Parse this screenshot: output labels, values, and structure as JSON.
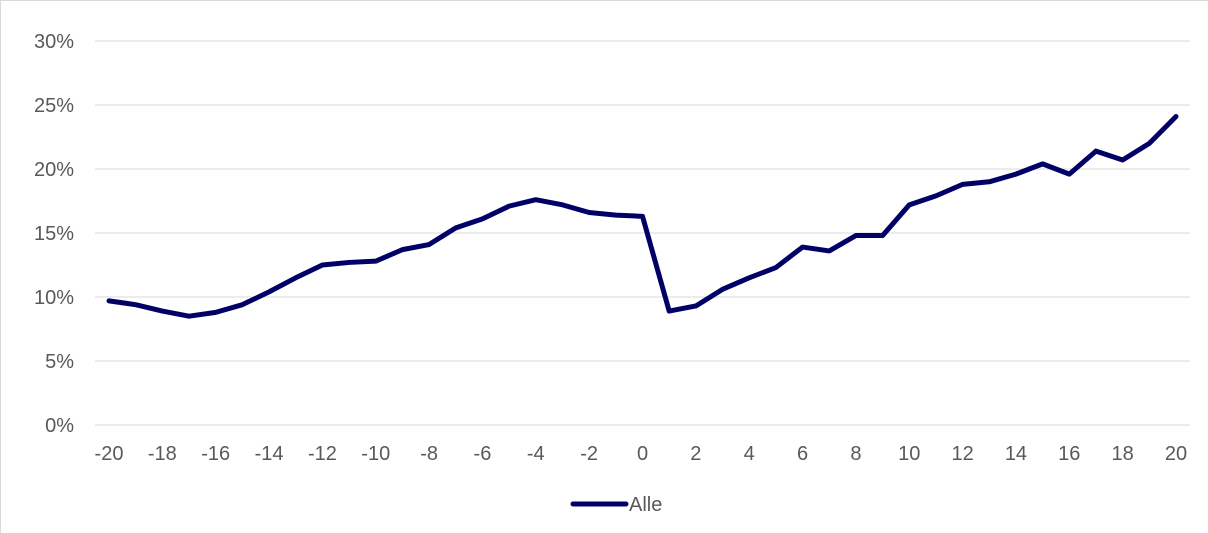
{
  "chart_data": {
    "type": "line",
    "title": "",
    "xlabel": "",
    "ylabel": "",
    "x": [
      -20,
      -19,
      -18,
      -17,
      -16,
      -15,
      -14,
      -13,
      -12,
      -11,
      -10,
      -9,
      -8,
      -7,
      -6,
      -5,
      -4,
      -3,
      -2,
      -1,
      0,
      1,
      2,
      3,
      4,
      5,
      6,
      7,
      8,
      9,
      10,
      11,
      12,
      13,
      14,
      15,
      16,
      17,
      18,
      19,
      20
    ],
    "xlim": [
      -20,
      20
    ],
    "ylim": [
      0,
      0.3
    ],
    "x_ticks": [
      -20,
      -18,
      -16,
      -14,
      -12,
      -10,
      -8,
      -6,
      -4,
      -2,
      0,
      2,
      4,
      6,
      8,
      10,
      12,
      14,
      16,
      18,
      20
    ],
    "x_tick_labels": [
      "-20",
      "-18",
      "-16",
      "-14",
      "-12",
      "-10",
      "-8",
      "-6",
      "-4",
      "-2",
      "0",
      "2",
      "4",
      "6",
      "8",
      "10",
      "12",
      "14",
      "16",
      "18",
      "20"
    ],
    "y_ticks": [
      0,
      0.05,
      0.1,
      0.15,
      0.2,
      0.25,
      0.3
    ],
    "y_tick_labels": [
      "0%",
      "5%",
      "10%",
      "15%",
      "20%",
      "25%",
      "30%"
    ],
    "grid": "horizontal",
    "legend_position": "bottom",
    "series": [
      {
        "name": "Alle",
        "color": "#000066",
        "values": [
          0.097,
          0.094,
          0.089,
          0.085,
          0.088,
          0.094,
          0.104,
          0.115,
          0.125,
          0.127,
          0.128,
          0.137,
          0.141,
          0.154,
          0.161,
          0.171,
          0.176,
          0.172,
          0.166,
          0.164,
          0.163,
          0.089,
          0.093,
          0.106,
          0.115,
          0.123,
          0.139,
          0.136,
          0.148,
          0.148,
          0.172,
          0.179,
          0.188,
          0.19,
          0.196,
          0.204,
          0.196,
          0.214,
          0.207,
          0.22,
          0.241
        ]
      }
    ]
  }
}
